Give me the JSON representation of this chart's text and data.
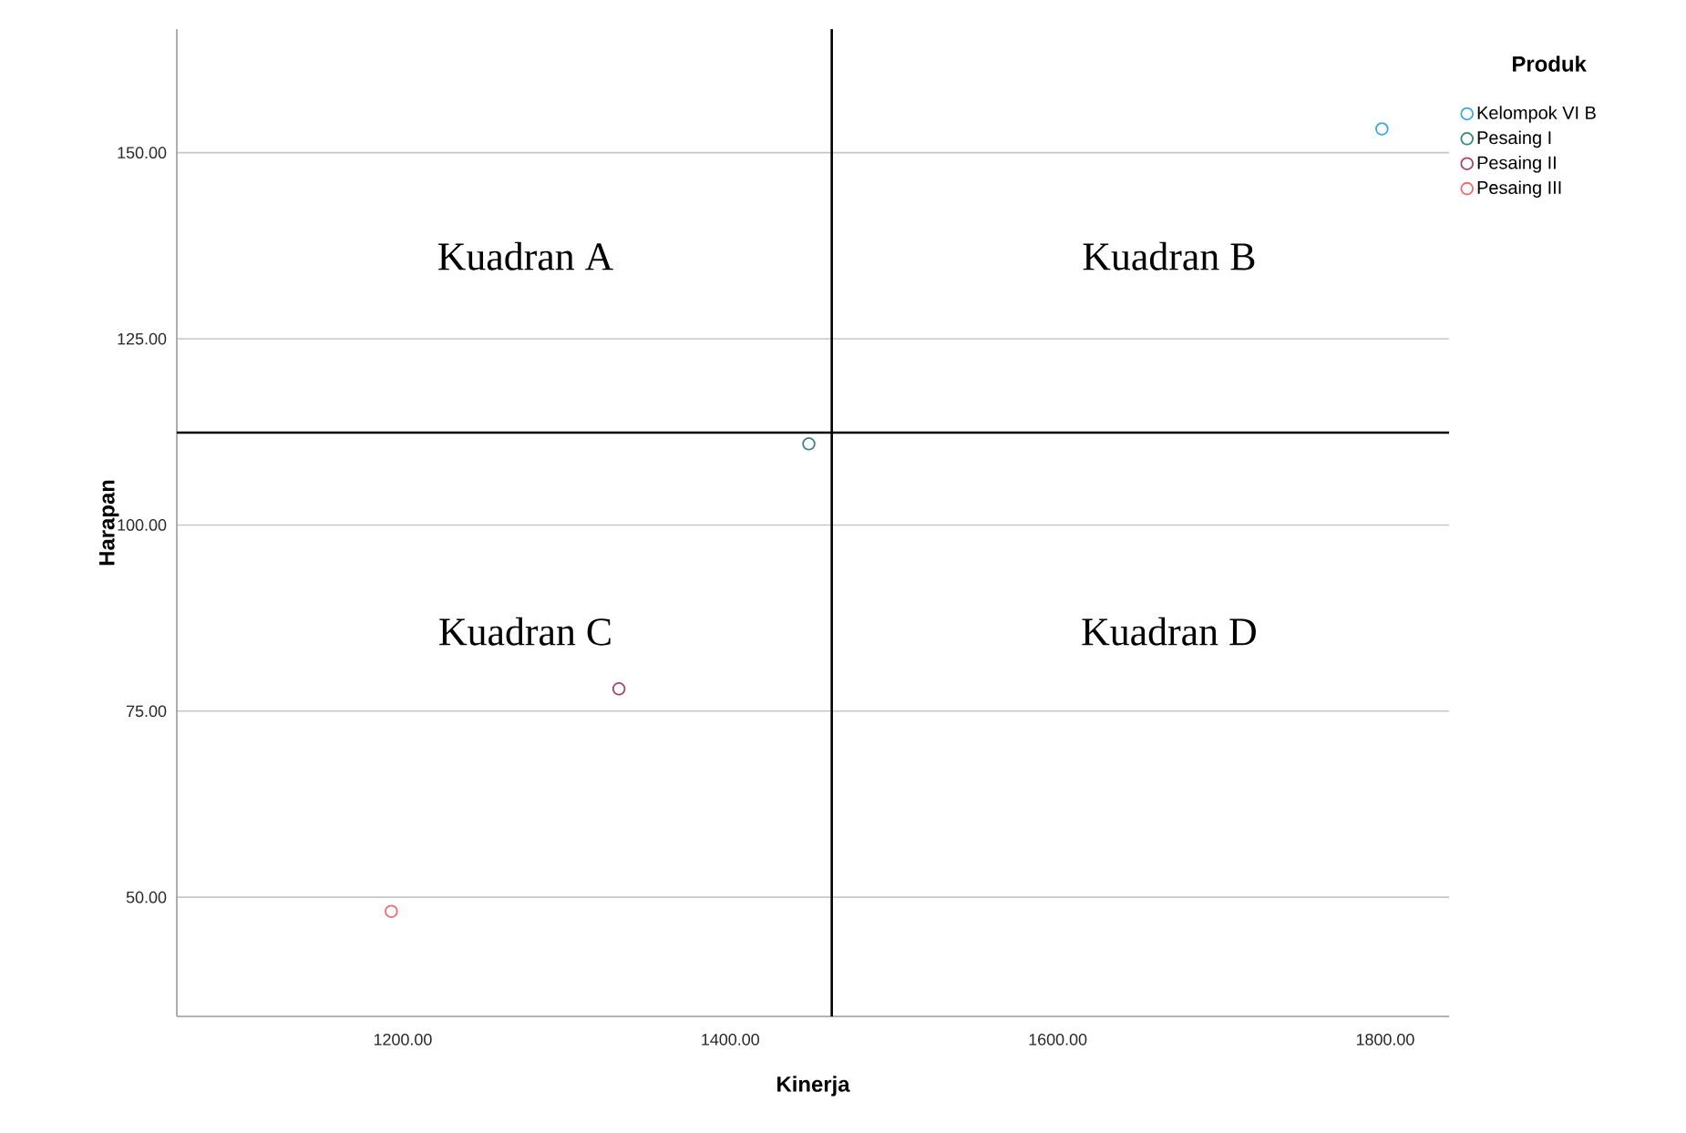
{
  "chart_data": {
    "type": "scatter",
    "xlabel": "Kinerja",
    "ylabel": "Harapan",
    "legend_title": "Produk",
    "xlim": [
      1062,
      1839
    ],
    "ylim": [
      34,
      166.6
    ],
    "xticks": [
      {
        "value": 1200,
        "label": "1200.00"
      },
      {
        "value": 1400,
        "label": "1400.00"
      },
      {
        "value": 1600,
        "label": "1600.00"
      },
      {
        "value": 1800,
        "label": "1800.00"
      }
    ],
    "yticks": [
      {
        "value": 50,
        "label": "50.00"
      },
      {
        "value": 75,
        "label": "75.00"
      },
      {
        "value": 100,
        "label": "100.00"
      },
      {
        "value": 125,
        "label": "125.00"
      },
      {
        "value": 150,
        "label": "150.00"
      }
    ],
    "grid": "y",
    "legend": "top right",
    "marker": "circle",
    "series": [
      {
        "name": "Kelompok VI B",
        "color": "#3aa8e8",
        "x": [
          1798
        ],
        "values": [
          153.2
        ]
      },
      {
        "name": "Pesaing I",
        "color": "#3b8585",
        "x": [
          1448
        ],
        "values": [
          110.9
        ]
      },
      {
        "name": "Pesaing II",
        "color": "#a5456e",
        "x": [
          1332
        ],
        "values": [
          78
        ]
      },
      {
        "name": "Pesaing III",
        "color": "#f06b6b",
        "x": [
          1193
        ],
        "values": [
          48.1
        ]
      }
    ],
    "ref_lines": [
      {
        "axis": "x",
        "value": 1462
      },
      {
        "axis": "y",
        "value": 112.4
      }
    ],
    "annotations": [
      "Kuadran A",
      "Kuadran B",
      "Kuadran C",
      "Kuadran D"
    ]
  }
}
